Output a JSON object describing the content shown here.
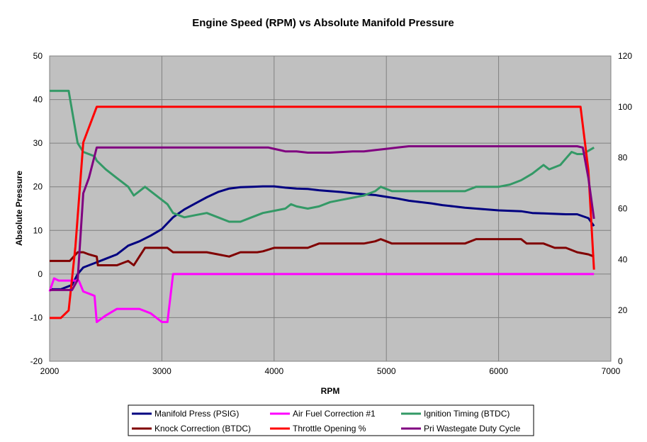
{
  "chart_data": {
    "type": "line",
    "title": "Engine Speed (RPM) vs Absolute Manifold Pressure",
    "xlabel": "RPM",
    "ylabel": "Absolute Pressure",
    "xlim": [
      2000,
      7000
    ],
    "x_ticks": [
      2000,
      3000,
      4000,
      5000,
      6000,
      7000
    ],
    "ylim": [
      -20,
      50
    ],
    "y_ticks": [
      -20,
      -10,
      0,
      10,
      20,
      30,
      40,
      50
    ],
    "y2lim": [
      0,
      120
    ],
    "y2_ticks": [
      0,
      20,
      40,
      60,
      80,
      100,
      120
    ],
    "grid": true,
    "legend_position": "bottom",
    "series": [
      {
        "name": "Manifold Press (PSIG)",
        "axis": "left",
        "color": "#000080",
        "points": [
          [
            2000,
            -3.5
          ],
          [
            2100,
            -3.5
          ],
          [
            2200,
            -2.5
          ],
          [
            2250,
            0
          ],
          [
            2300,
            1.5
          ],
          [
            2400,
            2.5
          ],
          [
            2500,
            3.5
          ],
          [
            2600,
            4.5
          ],
          [
            2700,
            6.5
          ],
          [
            2800,
            7.5
          ],
          [
            2900,
            8.8
          ],
          [
            3000,
            10.3
          ],
          [
            3100,
            13
          ],
          [
            3200,
            14.8
          ],
          [
            3300,
            16.2
          ],
          [
            3400,
            17.6
          ],
          [
            3500,
            18.8
          ],
          [
            3600,
            19.6
          ],
          [
            3700,
            19.9
          ],
          [
            3800,
            20
          ],
          [
            3900,
            20.1
          ],
          [
            4000,
            20.1
          ],
          [
            4100,
            19.8
          ],
          [
            4200,
            19.6
          ],
          [
            4300,
            19.5
          ],
          [
            4400,
            19.2
          ],
          [
            4500,
            19
          ],
          [
            4600,
            18.8
          ],
          [
            4700,
            18.5
          ],
          [
            4800,
            18.3
          ],
          [
            4900,
            18.1
          ],
          [
            5000,
            17.7
          ],
          [
            5100,
            17.3
          ],
          [
            5200,
            16.8
          ],
          [
            5300,
            16.5
          ],
          [
            5400,
            16.2
          ],
          [
            5500,
            15.8
          ],
          [
            5600,
            15.5
          ],
          [
            5700,
            15.2
          ],
          [
            5800,
            15
          ],
          [
            5900,
            14.8
          ],
          [
            6000,
            14.6
          ],
          [
            6100,
            14.5
          ],
          [
            6200,
            14.4
          ],
          [
            6300,
            14
          ],
          [
            6400,
            13.9
          ],
          [
            6500,
            13.8
          ],
          [
            6600,
            13.7
          ],
          [
            6700,
            13.7
          ],
          [
            6800,
            12.8
          ],
          [
            6850,
            11
          ]
        ]
      },
      {
        "name": "Air Fuel Correction #1",
        "axis": "left",
        "color": "#FF00FF",
        "points": [
          [
            2000,
            -4
          ],
          [
            2040,
            -1
          ],
          [
            2080,
            -1.5
          ],
          [
            2200,
            -1.5
          ],
          [
            2260,
            -1.5
          ],
          [
            2300,
            -4
          ],
          [
            2400,
            -5
          ],
          [
            2420,
            -11
          ],
          [
            2500,
            -9.5
          ],
          [
            2600,
            -8
          ],
          [
            2700,
            -8
          ],
          [
            2800,
            -8
          ],
          [
            2900,
            -9
          ],
          [
            3000,
            -11
          ],
          [
            3050,
            -11
          ],
          [
            3100,
            0
          ],
          [
            3200,
            0
          ],
          [
            4000,
            0
          ],
          [
            5000,
            0
          ],
          [
            6000,
            0
          ],
          [
            6850,
            0
          ]
        ]
      },
      {
        "name": "Ignition Timing (BTDC)",
        "axis": "left",
        "color": "#339966",
        "points": [
          [
            2000,
            42
          ],
          [
            2100,
            42
          ],
          [
            2170,
            42
          ],
          [
            2250,
            30
          ],
          [
            2300,
            28
          ],
          [
            2400,
            27
          ],
          [
            2420,
            26
          ],
          [
            2500,
            24
          ],
          [
            2600,
            22
          ],
          [
            2650,
            21
          ],
          [
            2700,
            20
          ],
          [
            2750,
            18
          ],
          [
            2800,
            19
          ],
          [
            2850,
            20
          ],
          [
            2900,
            19
          ],
          [
            3000,
            17
          ],
          [
            3050,
            16
          ],
          [
            3100,
            14
          ],
          [
            3200,
            13
          ],
          [
            3300,
            13.5
          ],
          [
            3400,
            14
          ],
          [
            3500,
            13
          ],
          [
            3600,
            12
          ],
          [
            3700,
            12
          ],
          [
            3800,
            13
          ],
          [
            3900,
            14
          ],
          [
            4000,
            14.5
          ],
          [
            4100,
            15
          ],
          [
            4150,
            16
          ],
          [
            4200,
            15.5
          ],
          [
            4300,
            15
          ],
          [
            4400,
            15.5
          ],
          [
            4500,
            16.5
          ],
          [
            4600,
            17
          ],
          [
            4700,
            17.5
          ],
          [
            4800,
            18
          ],
          [
            4900,
            19
          ],
          [
            4950,
            20
          ],
          [
            5000,
            19.5
          ],
          [
            5050,
            19
          ],
          [
            5100,
            19
          ],
          [
            5500,
            19
          ],
          [
            5700,
            19
          ],
          [
            5800,
            20
          ],
          [
            6000,
            20
          ],
          [
            6100,
            20.5
          ],
          [
            6200,
            21.5
          ],
          [
            6300,
            23
          ],
          [
            6400,
            25
          ],
          [
            6450,
            24
          ],
          [
            6500,
            24.5
          ],
          [
            6550,
            25
          ],
          [
            6600,
            26.5
          ],
          [
            6650,
            28
          ],
          [
            6700,
            27.5
          ],
          [
            6750,
            27.5
          ],
          [
            6850,
            29
          ]
        ]
      },
      {
        "name": "Knock Correction (BTDC)",
        "axis": "left",
        "color": "#800000",
        "points": [
          [
            2000,
            3
          ],
          [
            2100,
            3
          ],
          [
            2180,
            3
          ],
          [
            2250,
            5
          ],
          [
            2300,
            5
          ],
          [
            2350,
            4.5
          ],
          [
            2420,
            4
          ],
          [
            2430,
            2
          ],
          [
            2500,
            2
          ],
          [
            2600,
            2
          ],
          [
            2700,
            3
          ],
          [
            2750,
            2
          ],
          [
            2800,
            4
          ],
          [
            2850,
            6
          ],
          [
            2900,
            6
          ],
          [
            3050,
            6
          ],
          [
            3100,
            5
          ],
          [
            3200,
            5
          ],
          [
            3400,
            5
          ],
          [
            3500,
            4.5
          ],
          [
            3600,
            4
          ],
          [
            3700,
            5
          ],
          [
            3850,
            5
          ],
          [
            3900,
            5.2
          ],
          [
            4000,
            6
          ],
          [
            4100,
            6
          ],
          [
            4300,
            6
          ],
          [
            4400,
            7
          ],
          [
            4800,
            7
          ],
          [
            4900,
            7.5
          ],
          [
            4950,
            8
          ],
          [
            5000,
            7.5
          ],
          [
            5050,
            7
          ],
          [
            5600,
            7
          ],
          [
            5700,
            7
          ],
          [
            5800,
            8
          ],
          [
            6000,
            8
          ],
          [
            6200,
            8
          ],
          [
            6250,
            7
          ],
          [
            6400,
            7
          ],
          [
            6500,
            6
          ],
          [
            6600,
            6
          ],
          [
            6700,
            5
          ],
          [
            6800,
            4.5
          ],
          [
            6850,
            4
          ]
        ]
      },
      {
        "name": "Throttle Opening %",
        "axis": "right",
        "color": "#FF0000",
        "points": [
          [
            2000,
            17
          ],
          [
            2100,
            17
          ],
          [
            2170,
            20
          ],
          [
            2230,
            45
          ],
          [
            2300,
            86
          ],
          [
            2420,
            100
          ],
          [
            2500,
            100
          ],
          [
            3000,
            100
          ],
          [
            4000,
            100
          ],
          [
            5000,
            100
          ],
          [
            6000,
            100
          ],
          [
            6700,
            100
          ],
          [
            6730,
            100
          ],
          [
            6800,
            75
          ],
          [
            6850,
            36
          ]
        ]
      },
      {
        "name": "Pri Wastegate Duty Cycle",
        "axis": "right",
        "color": "#800080",
        "points": [
          [
            2000,
            28
          ],
          [
            2100,
            28
          ],
          [
            2200,
            28
          ],
          [
            2250,
            32
          ],
          [
            2300,
            66
          ],
          [
            2350,
            72
          ],
          [
            2420,
            84
          ],
          [
            3000,
            84
          ],
          [
            3500,
            84
          ],
          [
            3800,
            84
          ],
          [
            3950,
            84
          ],
          [
            4000,
            83.5
          ],
          [
            4050,
            83
          ],
          [
            4100,
            82.5
          ],
          [
            4200,
            82.5
          ],
          [
            4300,
            82
          ],
          [
            4400,
            82
          ],
          [
            4500,
            82
          ],
          [
            4700,
            82.5
          ],
          [
            4800,
            82.5
          ],
          [
            4900,
            83
          ],
          [
            5000,
            83.5
          ],
          [
            5100,
            84
          ],
          [
            5200,
            84.5
          ],
          [
            5500,
            84.5
          ],
          [
            6000,
            84.5
          ],
          [
            6500,
            84.5
          ],
          [
            6700,
            84.5
          ],
          [
            6750,
            84
          ],
          [
            6800,
            72
          ],
          [
            6850,
            56
          ]
        ]
      }
    ]
  }
}
